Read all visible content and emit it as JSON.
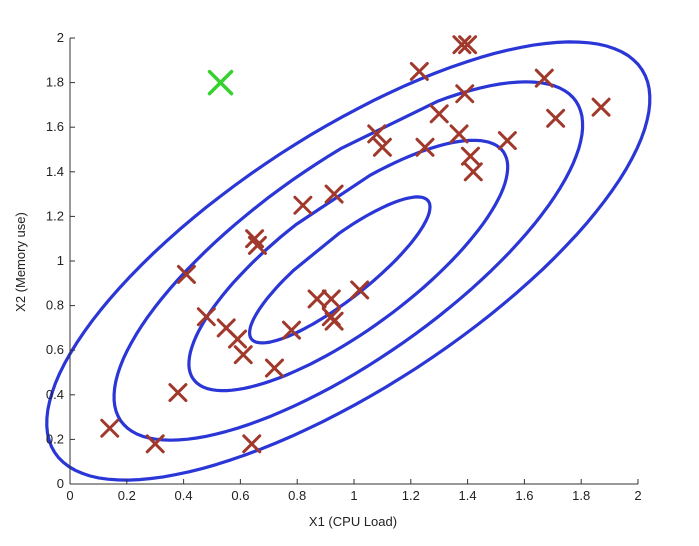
{
  "chart_data": {
    "type": "scatter",
    "title": "",
    "xlabel": "X1 (CPU Load)",
    "ylabel": "X2 (Memory use)",
    "xlim": [
      0,
      2
    ],
    "ylim": [
      0,
      2
    ],
    "xticks": [
      "0",
      "0.2",
      "0.4",
      "0.6",
      "0.8",
      "1",
      "1.2",
      "1.4",
      "1.6",
      "1.8",
      "2"
    ],
    "yticks": [
      "0",
      "0.2",
      "0.4",
      "0.6",
      "0.8",
      "1",
      "1.2",
      "1.4",
      "1.6",
      "1.8",
      "2"
    ],
    "grid": false,
    "colors": {
      "points": "#a0392c",
      "anomaly": "#35d12f",
      "contours": "#2b36d6"
    },
    "series": [
      {
        "marker": "x",
        "points": [
          [
            0.14,
            0.25
          ],
          [
            0.3,
            0.18
          ],
          [
            0.38,
            0.41
          ],
          [
            0.41,
            0.94
          ],
          [
            0.48,
            0.75
          ],
          [
            0.55,
            0.7
          ],
          [
            0.59,
            0.65
          ],
          [
            0.61,
            0.58
          ],
          [
            0.64,
            0.18
          ],
          [
            0.65,
            1.1
          ],
          [
            0.66,
            1.07
          ],
          [
            0.72,
            0.52
          ],
          [
            0.78,
            0.69
          ],
          [
            0.82,
            1.25
          ],
          [
            0.87,
            0.83
          ],
          [
            0.92,
            0.83
          ],
          [
            0.92,
            0.75
          ],
          [
            0.93,
            0.73
          ],
          [
            0.93,
            1.3
          ],
          [
            1.02,
            0.87
          ],
          [
            1.08,
            1.57
          ],
          [
            1.1,
            1.51
          ],
          [
            1.23,
            1.85
          ],
          [
            1.25,
            1.51
          ],
          [
            1.3,
            1.66
          ],
          [
            1.37,
            1.57
          ],
          [
            1.38,
            1.97
          ],
          [
            1.39,
            1.75
          ],
          [
            1.4,
            1.97
          ],
          [
            1.41,
            1.47
          ],
          [
            1.42,
            1.4
          ],
          [
            1.54,
            1.54
          ],
          [
            1.67,
            1.82
          ],
          [
            1.71,
            1.64
          ],
          [
            1.87,
            1.69
          ]
        ]
      },
      {
        "marker": "x",
        "points": [
          [
            0.53,
            1.8
          ]
        ]
      }
    ],
    "contours": [
      {
        "center": [
          0.95,
          0.96
        ],
        "rx": 0.44,
        "ry": 0.12,
        "angle_deg": 46,
        "open_gap_deg": [
          75,
          105
        ]
      },
      {
        "center": [
          0.98,
          0.98
        ],
        "rx": 0.75,
        "ry": 0.26,
        "angle_deg": 45,
        "open_gap_deg": [
          65,
          90
        ]
      },
      {
        "center": [
          0.98,
          1.0
        ],
        "rx": 1.08,
        "ry": 0.4,
        "angle_deg": 44,
        "open_gap_deg": [
          50,
          70
        ]
      },
      {
        "center": [
          0.98,
          1.0
        ],
        "rx": 1.35,
        "ry": 0.52,
        "angle_deg": 42,
        "open_gap_deg": null
      }
    ]
  }
}
